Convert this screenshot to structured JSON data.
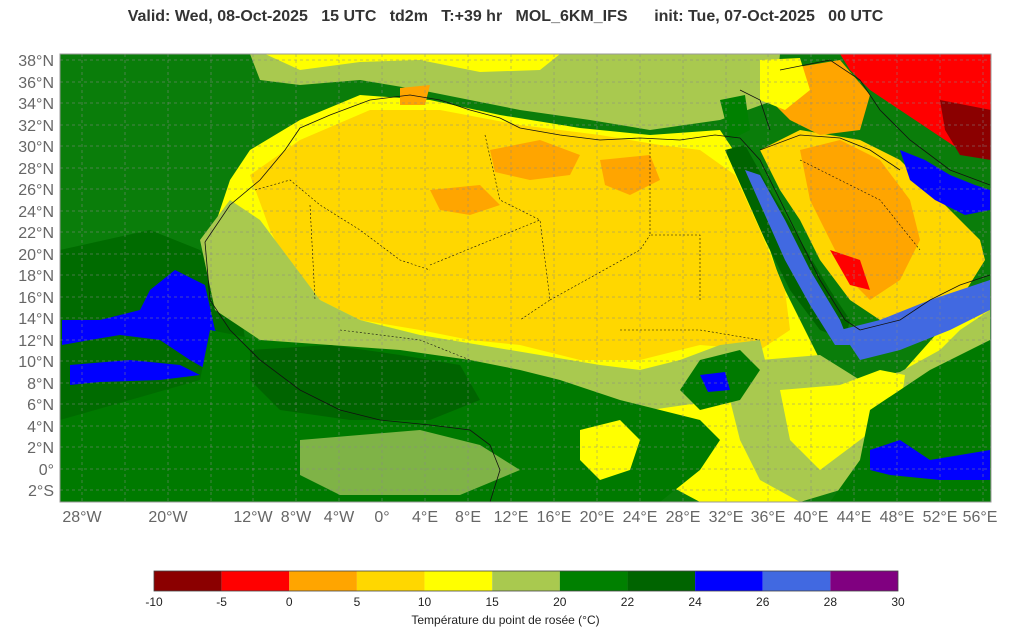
{
  "title": "Valid: Wed, 08-Oct-2025   15 UTC   td2m   T:+39 hr   MOL_6KM_IFS      init: Tue, 07-Oct-2025   00 UTC",
  "lat_labels": [
    "38°N",
    "36°N",
    "34°N",
    "32°N",
    "30°N",
    "28°N",
    "26°N",
    "24°N",
    "22°N",
    "20°N",
    "18°N",
    "16°N",
    "14°N",
    "12°N",
    "10°N",
    "8°N",
    "6°N",
    "4°N",
    "2°N",
    "0°",
    "2°S"
  ],
  "lon_labels": [
    "28°W",
    "20°W",
    "12°W",
    "8°W",
    "4°W",
    "0°",
    "4°E",
    "8°E",
    "12°E",
    "16°E",
    "20°E",
    "24°E",
    "28°E",
    "32°E",
    "36°E",
    "40°E",
    "44°E",
    "48°E",
    "52°E",
    "56°E"
  ],
  "legend": {
    "title": "Température du point de rosée (°C)",
    "ticks": [
      "-10",
      "-5",
      "0",
      "5",
      "10",
      "15",
      "20",
      "22",
      "24",
      "26",
      "28",
      "30"
    ],
    "colors": [
      "#8b0000",
      "#ff0000",
      "#ffa500",
      "#ffd700",
      "#ffff00",
      "#a9c94f",
      "#008000",
      "#006400",
      "#0000ff",
      "#4169e1",
      "#800080"
    ]
  },
  "palette": {
    "ocean_green": "#007a00",
    "dark_green": "#006400",
    "green": "#008000",
    "light_green": "#a9c94f",
    "yellow": "#ffff00",
    "gold": "#ffd700",
    "orange": "#ffa500",
    "red": "#ff0000",
    "blue": "#0000ff",
    "royal_blue": "#4169e1"
  }
}
